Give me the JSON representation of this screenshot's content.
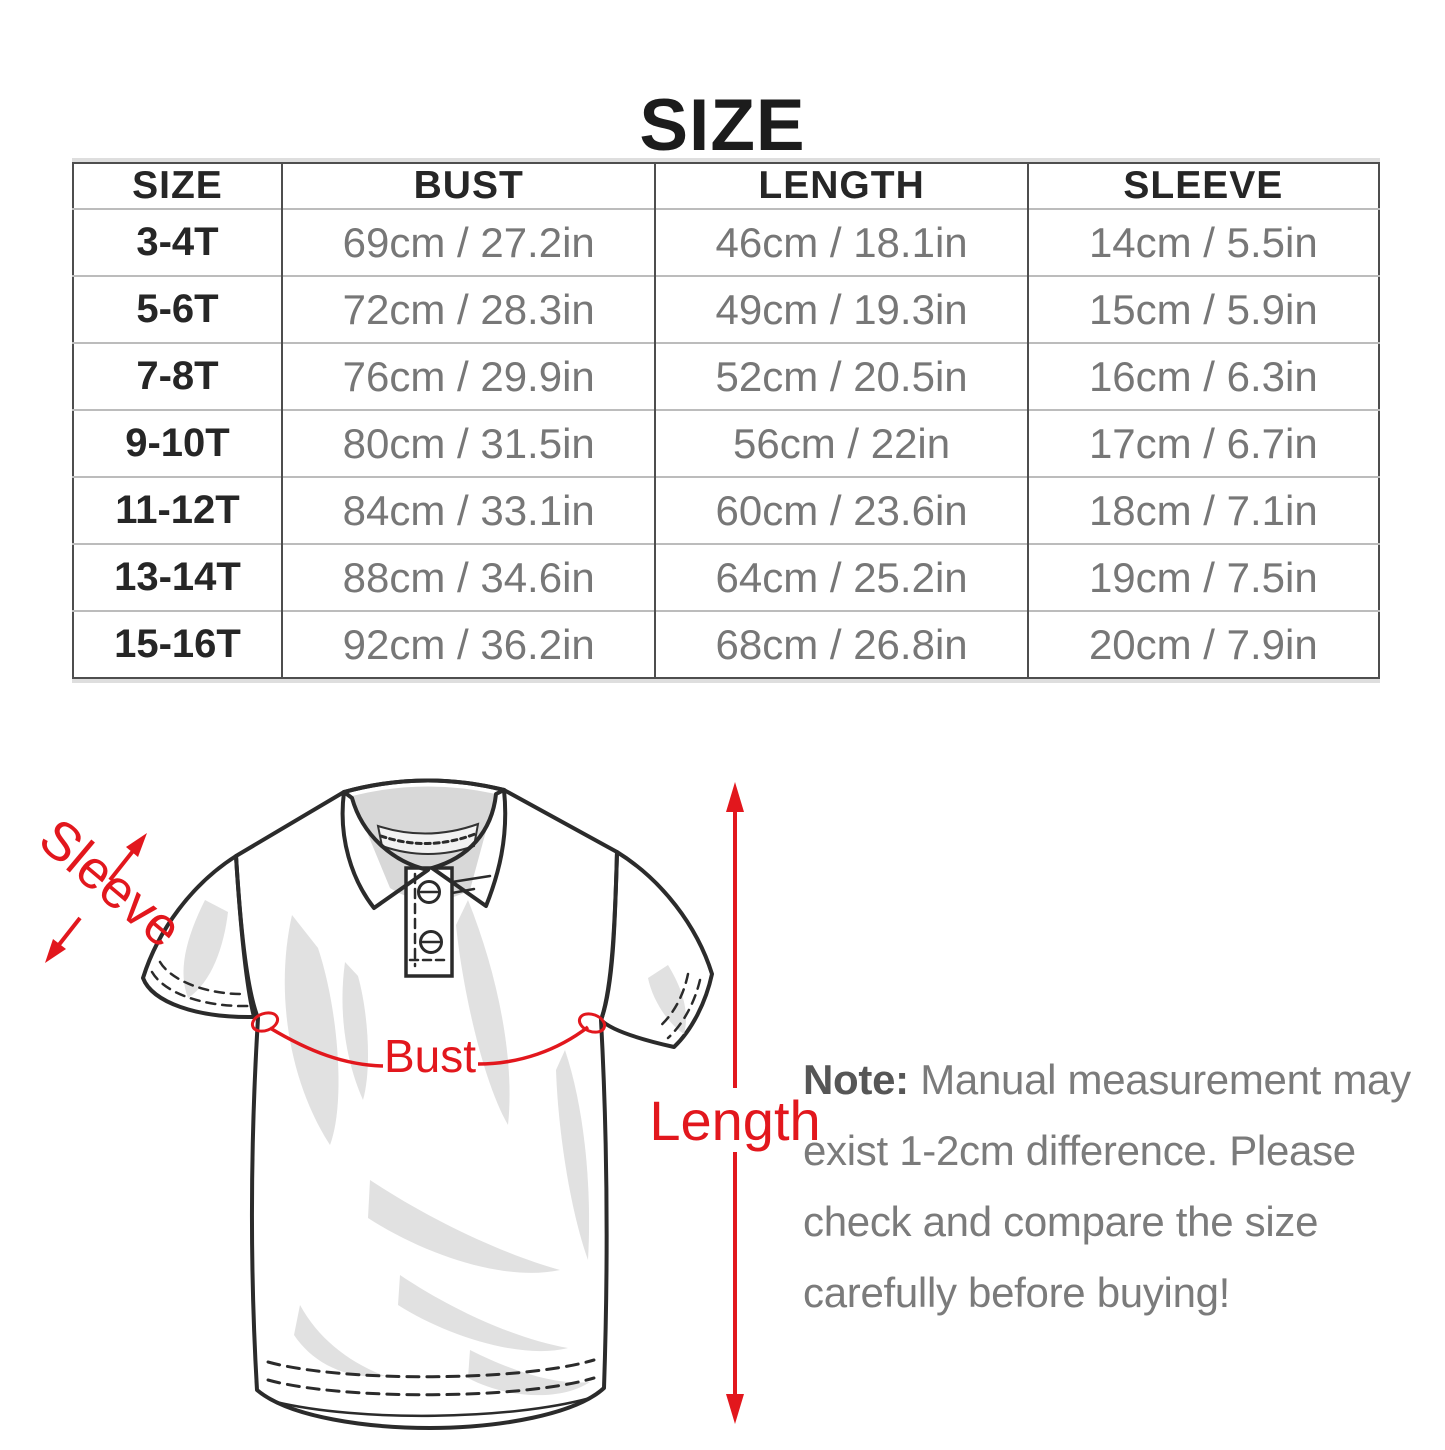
{
  "title": "SIZE",
  "table": {
    "headers": [
      "SIZE",
      "BUST",
      "LENGTH",
      "SLEEVE"
    ],
    "rows": [
      {
        "size": "3-4T",
        "bust": "69cm / 27.2in",
        "length": "46cm / 18.1in",
        "sleeve": "14cm / 5.5in"
      },
      {
        "size": "5-6T",
        "bust": "72cm / 28.3in",
        "length": "49cm / 19.3in",
        "sleeve": "15cm / 5.9in"
      },
      {
        "size": "7-8T",
        "bust": "76cm / 29.9in",
        "length": "52cm / 20.5in",
        "sleeve": "16cm / 6.3in"
      },
      {
        "size": "9-10T",
        "bust": "80cm / 31.5in",
        "length": "56cm / 22in",
        "sleeve": "17cm / 6.7in"
      },
      {
        "size": "11-12T",
        "bust": "84cm / 33.1in",
        "length": "60cm / 23.6in",
        "sleeve": "18cm / 7.1in"
      },
      {
        "size": "13-14T",
        "bust": "88cm / 34.6in",
        "length": "64cm / 25.2in",
        "sleeve": "19cm / 7.5in"
      },
      {
        "size": "15-16T",
        "bust": "92cm / 36.2in",
        "length": "68cm / 26.8in",
        "sleeve": "20cm / 7.9in"
      }
    ],
    "columns": [
      "size",
      "bust",
      "length",
      "sleeve"
    ]
  },
  "diagram": {
    "sleeve_label": "Sleeve",
    "bust_label": "Bust",
    "length_label": "Length"
  },
  "note": {
    "label": "Note:",
    "lines": [
      "Manual measurement may",
      "exist 1-2cm difference. Please",
      "check and compare the size",
      "carefully before buying!"
    ]
  },
  "colors": {
    "accent_red": "#e2171d",
    "text_dark": "#262626",
    "text_gray": "#777777"
  }
}
